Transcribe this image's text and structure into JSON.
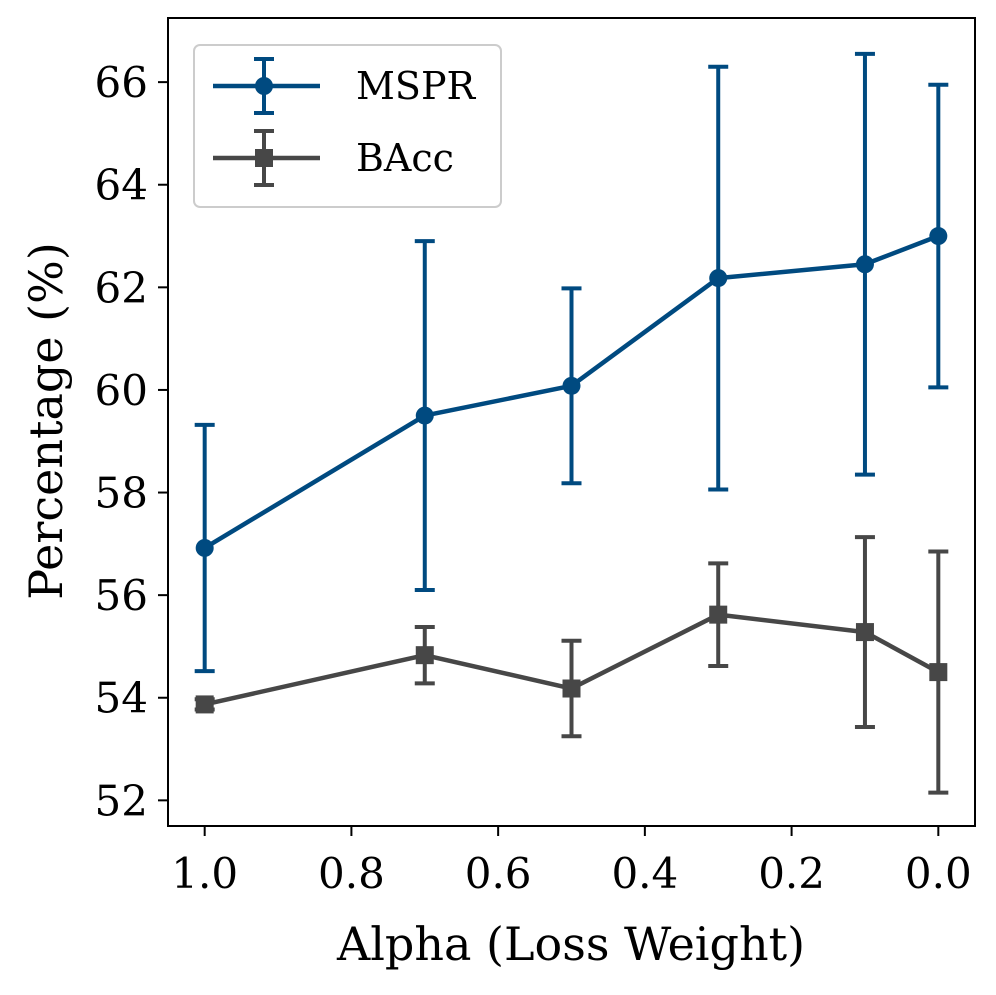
{
  "chart_data": {
    "type": "line",
    "title": "",
    "xlabel": "Alpha (Loss Weight)",
    "ylabel": "Percentage (%)",
    "x": [
      1.0,
      0.7,
      0.5,
      0.3,
      0.1,
      0.0
    ],
    "xlim": [
      1.05,
      -0.05
    ],
    "x_reversed": true,
    "ylim": [
      51.5,
      67.25
    ],
    "xticks": [
      1.0,
      0.8,
      0.6,
      0.4,
      0.2,
      0.0
    ],
    "xtick_labels": [
      "1.0",
      "0.8",
      "0.6",
      "0.4",
      "0.2",
      "0.0"
    ],
    "yticks": [
      52,
      54,
      56,
      58,
      60,
      62,
      64,
      66
    ],
    "ytick_labels": [
      "52",
      "54",
      "56",
      "58",
      "60",
      "62",
      "64",
      "66"
    ],
    "grid": false,
    "legend_position": "top-left",
    "series": [
      {
        "name": "MSPR",
        "marker": "circle",
        "color": "#004a80",
        "values": [
          56.92,
          59.5,
          60.08,
          62.18,
          62.45,
          63.0
        ],
        "errors": [
          2.4,
          3.4,
          1.9,
          4.12,
          4.1,
          2.95
        ]
      },
      {
        "name": "BAcc",
        "marker": "square",
        "color": "#474747",
        "values": [
          53.87,
          54.83,
          54.18,
          55.62,
          55.28,
          54.5
        ],
        "errors": [
          0.1,
          0.55,
          0.93,
          1.0,
          1.85,
          2.35
        ]
      }
    ]
  }
}
